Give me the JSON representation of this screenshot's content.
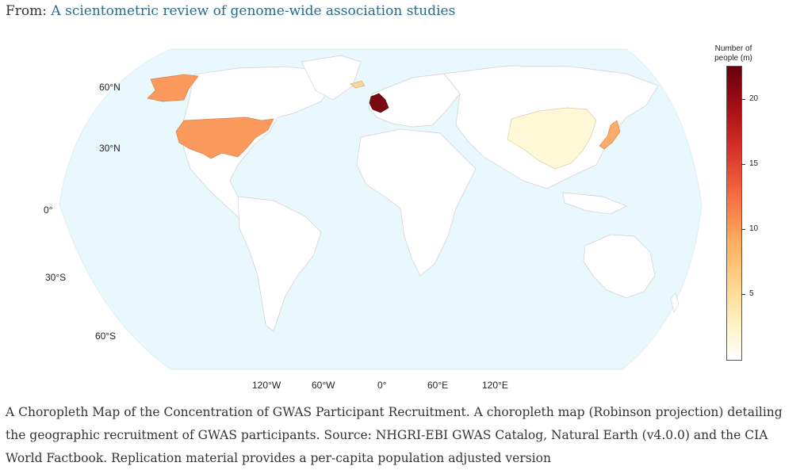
{
  "header": {
    "from_label": "From:",
    "source_title": "A scientometric review of genome-wide association studies"
  },
  "map": {
    "projection": "Robinson",
    "ocean_color": "#e9f8fc",
    "land_color": "#ffffff",
    "border_color": "#cfcfcf",
    "lat_labels": [
      "60°N",
      "30°N",
      "0°",
      "30°S",
      "60°S"
    ],
    "lon_labels": [
      "120°W",
      "60°W",
      "0°",
      "60°E",
      "120°E"
    ],
    "highlighted_regions": [
      {
        "name": "United Kingdom",
        "color": "#7a0a12"
      },
      {
        "name": "United States",
        "color": "#fb9a5c"
      },
      {
        "name": "Japan",
        "color": "#fbab6a"
      },
      {
        "name": "Iceland",
        "color": "#fdd49a"
      },
      {
        "name": "China",
        "color": "#fff7d6"
      }
    ]
  },
  "legend": {
    "title_line1": "Number of",
    "title_line2": "people (m)",
    "ticks": [
      "20",
      "15",
      "10",
      "5"
    ],
    "colors": [
      "#ffffff",
      "#fff3c4",
      "#fdae61",
      "#d73027",
      "#67000d"
    ]
  },
  "caption": "A Choropleth Map of the Concentration of GWAS Participant Recruitment. A choropleth map (Robinson projection) detailing the geographic recruitment of GWAS participants. Source: NHGRI-EBI GWAS Catalog, Natural Earth (v4.0.0) and the CIA World Factbook. Replication material provides a per-capita population adjusted version"
}
